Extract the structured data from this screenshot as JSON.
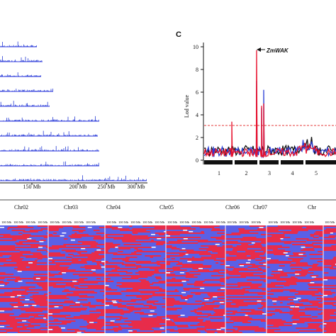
{
  "colors": {
    "red": "#e8112d",
    "blue": "#2b3fd6",
    "black": "#111111",
    "thr": "#e63b3b",
    "panel_blue": "#5a60e6",
    "panel_red": "#e82c4a"
  },
  "panel_c_label": "C",
  "top_left": {
    "x_ticks": [
      "150 Mb",
      "200 Mb",
      "250 Mb",
      "300 Mb"
    ]
  },
  "chart_data": [
    {
      "type": "line",
      "title": "",
      "xlabel": "",
      "ylabel": "Lod value",
      "ylim": [
        0,
        10
      ],
      "y_ticks": [
        "0",
        "2",
        "4",
        "6",
        "8",
        "10"
      ],
      "x_categories": [
        "1",
        "2",
        "3",
        "4",
        "5"
      ],
      "threshold": 3,
      "annotation": "ZmWAK",
      "series_colors": [
        "#e8112d",
        "#2b3fd6",
        "#111111"
      ],
      "peaks": [
        {
          "chr": "2",
          "pos": 0.55,
          "red": 9.7,
          "blue": 7.0
        },
        {
          "chr": "2",
          "pos": 0.9,
          "red": 4.8,
          "blue": 4.6
        },
        {
          "chr": "3",
          "pos": 0.0,
          "red": 5.0,
          "blue": 6.2
        },
        {
          "chr": "1",
          "pos": 0.9,
          "red": 3.4,
          "blue": 1.2
        }
      ]
    },
    {
      "type": "heatmap",
      "chromosomes": [
        "Chr02",
        "Chr03",
        "Chr04",
        "Chr05",
        "Chr06",
        "Chr07",
        "Chr"
      ],
      "row_label": "100 Mb"
    }
  ]
}
